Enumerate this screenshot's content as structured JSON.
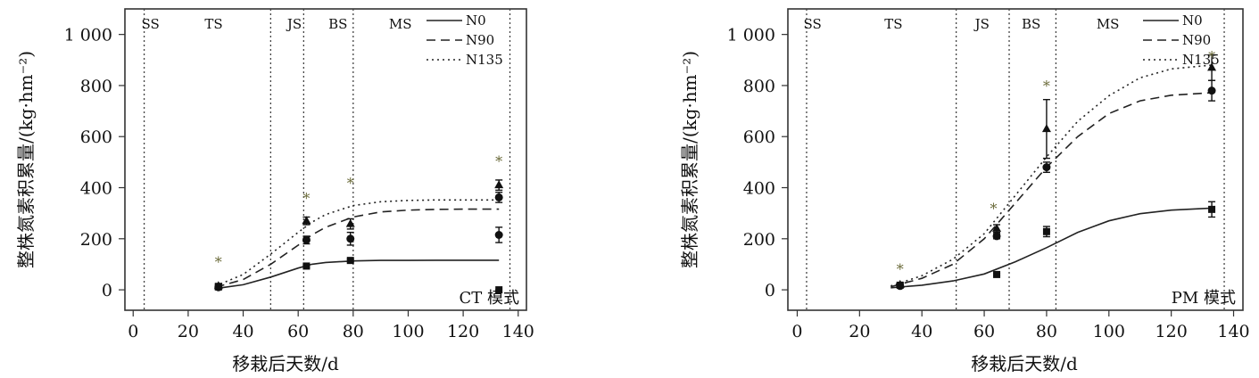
{
  "colors": {
    "curve": "#222222",
    "marker": "#111111",
    "star": "#6b6b3a",
    "frame": "#333333"
  },
  "chart_data": [
    {
      "type": "line",
      "panel_label": "CT 模式",
      "xlabel": "移栽后天数/d",
      "ylabel": "整株氮素积累量/(kg·hm⁻²)",
      "xlim": [
        -3,
        143
      ],
      "ylim": [
        -80,
        1100
      ],
      "x_ticks": [
        0,
        20,
        40,
        60,
        80,
        100,
        120,
        140
      ],
      "x_tick_labels": [
        "0",
        "20",
        "40",
        "60",
        "80",
        "100",
        "120",
        "140"
      ],
      "y_ticks": [
        0,
        200,
        400,
        600,
        800,
        1000
      ],
      "y_tick_labels": [
        "0",
        "200",
        "400",
        "600",
        "800",
        "1 000"
      ],
      "stage_boundaries": [
        4,
        50,
        62,
        80,
        137
      ],
      "stages": [
        {
          "label": "SS",
          "x": 3
        },
        {
          "label": "TS",
          "x": 26
        },
        {
          "label": "JS",
          "x": 56
        },
        {
          "label": "BS",
          "x": 71
        },
        {
          "label": "MS",
          "x": 93
        }
      ],
      "legend": [
        "N0",
        "N90",
        "N135"
      ],
      "series": [
        {
          "name": "N0",
          "style": "solid",
          "curve": {
            "x": [
              30,
              40,
              50,
              60,
              65,
              70,
              80,
              90,
              100,
              110,
              120,
              133
            ],
            "y": [
              5,
              20,
              50,
              85,
              100,
              107,
              113,
              115,
              115,
              116,
              116,
              116
            ]
          },
          "points": {
            "x": [
              31,
              63,
              79,
              133
            ],
            "y": [
              12,
              93,
              115,
              0
            ],
            "err": [
              5,
              5,
              5,
              0
            ]
          }
        },
        {
          "name": "N90",
          "style": "dashed",
          "curve": {
            "x": [
              30,
              40,
              50,
              60,
              65,
              70,
              80,
              90,
              100,
              110,
              120,
              133
            ],
            "y": [
              10,
              40,
              100,
              175,
              215,
              245,
              285,
              305,
              312,
              315,
              316,
              316
            ]
          },
          "points": {
            "x": [
              31,
              63,
              79,
              133
            ],
            "y": [
              10,
              195,
              200,
              215
            ],
            "err": [
              10,
              15,
              25,
              30
            ]
          }
        },
        {
          "name": "N135",
          "style": "dotted",
          "curve": {
            "x": [
              30,
              40,
              50,
              60,
              65,
              70,
              80,
              90,
              100,
              110,
              120,
              133
            ],
            "y": [
              15,
              60,
              140,
              225,
              265,
              295,
              330,
              345,
              350,
              352,
              352,
              352
            ]
          },
          "points": {
            "x": [
              31,
              63,
              79,
              133
            ],
            "y": [
              15,
              270,
              258,
              410
            ],
            "err": [
              10,
              15,
              20,
              20
            ]
          }
        },
        {
          "name": "",
          "style": "markers-only",
          "points": {
            "x": [
              133
            ],
            "y": [
              362
            ],
            "err": [
              20
            ]
          }
        }
      ],
      "significance_marks": {
        "x": [
          31,
          63,
          79,
          133
        ],
        "y": [
          110,
          360,
          420,
          505
        ],
        "label": "*"
      }
    },
    {
      "type": "line",
      "panel_label": "PM 模式",
      "xlabel": "移栽后天数/d",
      "ylabel": "整株氮素积累量/(kg·hm⁻²)",
      "xlim": [
        -3,
        143
      ],
      "ylim": [
        -80,
        1100
      ],
      "x_ticks": [
        0,
        20,
        40,
        60,
        80,
        100,
        120,
        140
      ],
      "x_tick_labels": [
        "0",
        "20",
        "40",
        "60",
        "80",
        "100",
        "120",
        "140"
      ],
      "y_ticks": [
        0,
        200,
        400,
        600,
        800,
        1000
      ],
      "y_tick_labels": [
        "0",
        "200",
        "400",
        "600",
        "800",
        "1 000"
      ],
      "stage_boundaries": [
        3,
        51,
        68,
        83,
        137
      ],
      "stages": [
        {
          "label": "SS",
          "x": 2
        },
        {
          "label": "TS",
          "x": 28
        },
        {
          "label": "JS",
          "x": 57
        },
        {
          "label": "BS",
          "x": 72
        },
        {
          "label": "MS",
          "x": 96
        }
      ],
      "legend": [
        "N0",
        "N90",
        "N135"
      ],
      "series": [
        {
          "name": "N0",
          "style": "solid",
          "curve": {
            "x": [
              30,
              40,
              50,
              60,
              70,
              80,
              90,
              100,
              110,
              120,
              133
            ],
            "y": [
              8,
              18,
              35,
              62,
              110,
              165,
              225,
              270,
              298,
              312,
              320
            ]
          },
          "points": {
            "x": [
              33,
              64,
              80,
              133
            ],
            "y": [
              18,
              60,
              228,
              315
            ],
            "err": [
              5,
              5,
              20,
              30
            ]
          }
        },
        {
          "name": "N90",
          "style": "dashed",
          "curve": {
            "x": [
              30,
              40,
              50,
              60,
              70,
              80,
              90,
              100,
              110,
              120,
              133
            ],
            "y": [
              12,
              45,
              100,
              200,
              340,
              480,
              600,
              690,
              740,
              762,
              772
            ]
          },
          "points": {
            "x": [
              33,
              64,
              80,
              133
            ],
            "y": [
              15,
              210,
              480,
              780
            ],
            "err": [
              5,
              10,
              20,
              40
            ]
          }
        },
        {
          "name": "N135",
          "style": "dotted",
          "curve": {
            "x": [
              30,
              40,
              50,
              60,
              70,
              80,
              90,
              100,
              110,
              120,
              133
            ],
            "y": [
              15,
              55,
              120,
              220,
              370,
              520,
              660,
              760,
              830,
              865,
              880
            ]
          },
          "points": {
            "x": [
              33,
              64,
              80,
              133
            ],
            "y": [
              20,
              240,
              630,
              870
            ],
            "err": [
              8,
              15,
              115,
              50
            ]
          }
        }
      ],
      "significance_marks": {
        "x": [
          33,
          63,
          80,
          133
        ],
        "y": [
          82,
          320,
          800,
          915
        ],
        "label": "*"
      }
    }
  ]
}
